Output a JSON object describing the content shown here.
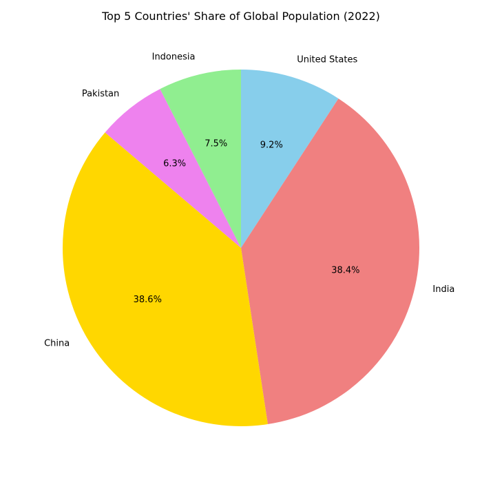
{
  "chart_data": {
    "type": "pie",
    "title": "Top 5 Countries' Share of Global Population (2022)",
    "start_angle_deg": 90,
    "direction": "clockwise",
    "slices": [
      {
        "label": "United States",
        "value": 9.2,
        "pct_text": "9.2%",
        "color": "#87CEEB"
      },
      {
        "label": "India",
        "value": 38.4,
        "pct_text": "38.4%",
        "color": "#F08080"
      },
      {
        "label": "China",
        "value": 38.6,
        "pct_text": "38.6%",
        "color": "#FFD700"
      },
      {
        "label": "Pakistan",
        "value": 6.3,
        "pct_text": "6.3%",
        "color": "#EE82EE"
      },
      {
        "label": "Indonesia",
        "value": 7.5,
        "pct_text": "7.5%",
        "color": "#90EE90"
      }
    ]
  }
}
